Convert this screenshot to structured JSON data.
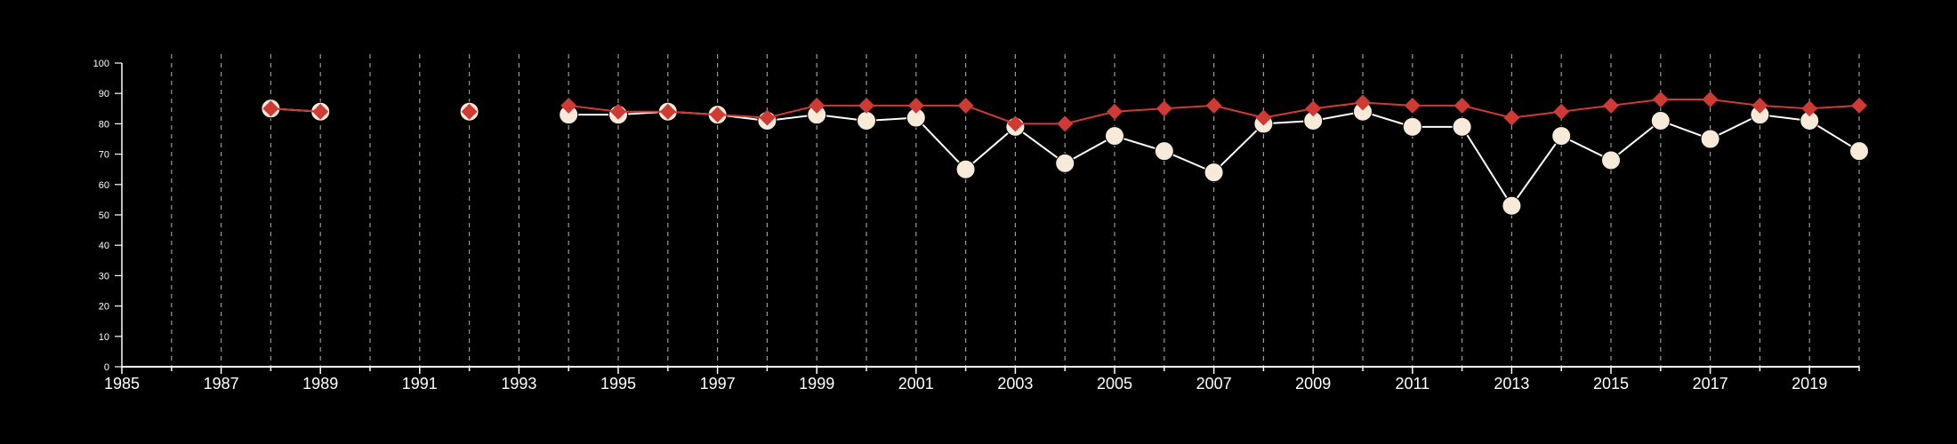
{
  "chart_data": {
    "type": "line",
    "title": "",
    "xlabel": "",
    "ylabel": "",
    "xlim": [
      1985,
      2020
    ],
    "ylim": [
      0,
      100
    ],
    "x_ticks": [
      "1985",
      "1987",
      "1989",
      "1991",
      "1993",
      "1995",
      "1997",
      "1999",
      "2001",
      "2003",
      "2005",
      "2007",
      "2009",
      "2011",
      "2013",
      "2015",
      "2017",
      "2019"
    ],
    "y_ticks": [
      "0",
      "10",
      "20",
      "30",
      "40",
      "50",
      "60",
      "70",
      "80",
      "90",
      "100"
    ],
    "grid": "vertical dashed lines at each year",
    "legend": "none",
    "colors": {
      "background": "#000000",
      "axis": "#ffffff",
      "grid": "#9a9a9a",
      "series_red": "#d03a34",
      "series_white_fill": "#f7ead8",
      "series_white_line": "#ffffff"
    },
    "series": [
      {
        "marker": "diamond",
        "color": "#d03a34",
        "segments": [
          [
            [
              1988,
              85
            ],
            [
              1989,
              84
            ]
          ],
          [
            [
              1992,
              84
            ]
          ],
          [
            [
              1994,
              86
            ],
            [
              1995,
              84
            ],
            [
              1996,
              84
            ],
            [
              1997,
              83
            ],
            [
              1998,
              82
            ],
            [
              1999,
              86
            ],
            [
              2000,
              86
            ],
            [
              2001,
              86
            ],
            [
              2002,
              86
            ],
            [
              2003,
              80
            ],
            [
              2004,
              80
            ],
            [
              2005,
              84
            ],
            [
              2006,
              85
            ],
            [
              2007,
              86
            ],
            [
              2008,
              82
            ],
            [
              2009,
              85
            ],
            [
              2010,
              87
            ],
            [
              2011,
              86
            ],
            [
              2012,
              86
            ],
            [
              2013,
              82
            ],
            [
              2014,
              84
            ],
            [
              2015,
              86
            ],
            [
              2016,
              88
            ],
            [
              2017,
              88
            ],
            [
              2018,
              86
            ],
            [
              2019,
              85
            ],
            [
              2020,
              86
            ]
          ]
        ]
      },
      {
        "marker": "circle",
        "color": "#f7ead8",
        "segments": [
          [
            [
              1988,
              85
            ],
            [
              1989,
              84
            ]
          ],
          [
            [
              1992,
              84
            ]
          ],
          [
            [
              1994,
              83
            ],
            [
              1995,
              83
            ],
            [
              1996,
              84
            ],
            [
              1997,
              83
            ],
            [
              1998,
              81
            ],
            [
              1999,
              83
            ],
            [
              2000,
              81
            ],
            [
              2001,
              82
            ],
            [
              2002,
              65
            ],
            [
              2003,
              79
            ],
            [
              2004,
              67
            ],
            [
              2005,
              76
            ],
            [
              2006,
              71
            ],
            [
              2007,
              64
            ],
            [
              2008,
              80
            ],
            [
              2009,
              81
            ],
            [
              2010,
              84
            ],
            [
              2011,
              79
            ],
            [
              2012,
              79
            ],
            [
              2013,
              53
            ],
            [
              2014,
              76
            ],
            [
              2015,
              68
            ],
            [
              2016,
              81
            ],
            [
              2017,
              75
            ],
            [
              2018,
              83
            ],
            [
              2019,
              81
            ],
            [
              2020,
              71
            ]
          ]
        ]
      }
    ]
  }
}
